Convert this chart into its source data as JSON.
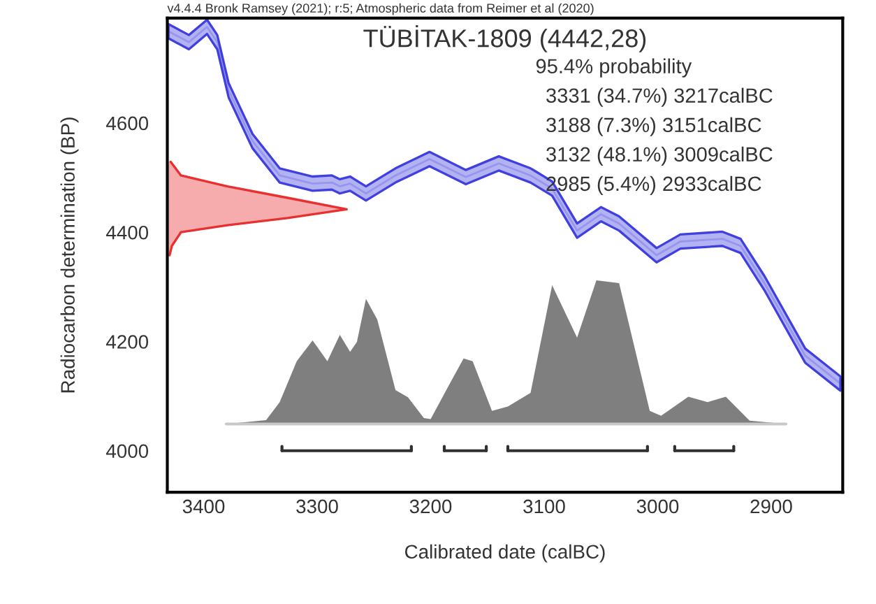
{
  "chart_data": {
    "type": "line",
    "title": "TÜBİTAK-1809 (4442,28)",
    "xlabel": "Calibrated date (calBC)",
    "ylabel": "Radiocarbon determination (BP)",
    "annotations": [
      "v4.4.4 Bronk Ramsey (2021); r:5; Atmospheric data from Reimer et al (2020)",
      "95.4% probability",
      "3331 (34.7%) 3217calBC",
      "3188 (7.3%) 3151calBC",
      "3132 (48.1%) 3009calBC",
      "2985 (5.4%) 2933calBC"
    ],
    "xlim": [
      3432,
      2837
    ],
    "xticks": [
      3400,
      3300,
      3200,
      3100,
      3000,
      2900
    ],
    "ylim": [
      3924,
      4792
    ],
    "yticks": [
      4000,
      4200,
      4400,
      4600
    ],
    "grid": false,
    "legend": false,
    "series": [
      {
        "color": "#c8c8c8",
        "x": [
          3380,
          3133,
          2887
        ],
        "values": [
          4049,
          4049,
          4049
        ]
      },
      {
        "type": "area",
        "color": "#7f7f7f",
        "x": [
          3380,
          3345,
          3333,
          3318,
          3304,
          3291,
          3280,
          3271,
          3265,
          3257,
          3247,
          3231,
          3220,
          3206,
          3200,
          3185,
          3171,
          3163,
          3146,
          3132,
          3112,
          3093,
          3071,
          3054,
          3034,
          3007,
          2997,
          2973,
          2956,
          2940,
          2919,
          2887
        ],
        "values": [
          4049,
          4056,
          4089,
          4164,
          4202,
          4164,
          4212,
          4181,
          4199,
          4278,
          4240,
          4111,
          4098,
          4060,
          4058,
          4116,
          4169,
          4164,
          4073,
          4081,
          4106,
          4303,
          4207,
          4312,
          4307,
          4073,
          4064,
          4099,
          4089,
          4099,
          4055,
          4049
        ]
      },
      {
        "color": "#4040e0",
        "x": [
          3431,
          3413,
          3397,
          3388,
          3378,
          3357,
          3333,
          3304,
          3287,
          3280,
          3271,
          3257,
          3231,
          3201,
          3169,
          3140,
          3112,
          3093,
          3071,
          3050,
          3034,
          3001,
          2980,
          2943,
          2927,
          2906,
          2870,
          2839
        ],
        "values": [
          4768,
          4748,
          4776,
          4748,
          4660,
          4567,
          4504,
          4489,
          4491,
          4484,
          4489,
          4471,
          4504,
          4534,
          4501,
          4526,
          4504,
          4480,
          4403,
          4433,
          4416,
          4358,
          4383,
          4388,
          4375,
          4307,
          4174,
          4123
        ],
        "lower": [
          4755,
          4735,
          4763,
          4735,
          4647,
          4554,
          4491,
          4476,
          4478,
          4471,
          4476,
          4458,
          4491,
          4521,
          4488,
          4513,
          4491,
          4467,
          4390,
          4420,
          4403,
          4345,
          4370,
          4375,
          4362,
          4294,
          4161,
          4110
        ],
        "upper": [
          4781,
          4761,
          4789,
          4761,
          4673,
          4580,
          4517,
          4502,
          4504,
          4497,
          4502,
          4484,
          4517,
          4547,
          4514,
          4539,
          4517,
          4493,
          4416,
          4446,
          4429,
          4371,
          4396,
          4401,
          4388,
          4320,
          4187,
          4136
        ]
      },
      {
        "type": "area",
        "color": "#e83030",
        "x": [
          3429,
          3420,
          3379,
          3326,
          3274,
          3326,
          3379,
          3420,
          3428,
          3430
        ],
        "values": [
          4529,
          4504,
          4484,
          4463,
          4442,
          4426,
          4413,
          4400,
          4375,
          4358
        ]
      },
      {
        "color": "#303030",
        "x": [
          3331,
          3217
        ],
        "values": [
          4000,
          4000
        ]
      },
      {
        "color": "#303030",
        "x": [
          3188,
          3151
        ],
        "values": [
          4000,
          4000
        ]
      },
      {
        "color": "#303030",
        "x": [
          3132,
          3009
        ],
        "values": [
          4000,
          4000
        ]
      },
      {
        "color": "#303030",
        "x": [
          2985,
          2933
        ],
        "values": [
          4000,
          4000
        ]
      }
    ]
  }
}
